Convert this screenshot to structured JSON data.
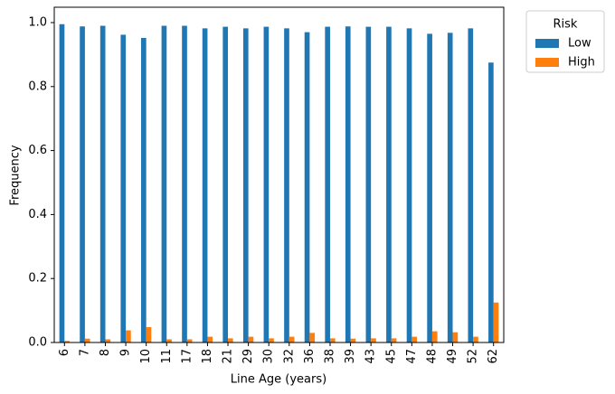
{
  "chart_data": {
    "type": "bar",
    "x_label": "Line Age (years)",
    "y_label": "Frequency",
    "categories": [
      "6",
      "7",
      "8",
      "9",
      "10",
      "11",
      "17",
      "18",
      "21",
      "29",
      "30",
      "32",
      "36",
      "38",
      "39",
      "43",
      "45",
      "47",
      "48",
      "49",
      "52",
      "62"
    ],
    "series": [
      {
        "name": "Low",
        "color": "#1f77b4",
        "values": [
          0.995,
          0.988,
          0.99,
          0.962,
          0.952,
          0.99,
          0.99,
          0.982,
          0.987,
          0.982,
          0.987,
          0.982,
          0.97,
          0.987,
          0.988,
          0.987,
          0.987,
          0.982,
          0.965,
          0.968,
          0.982,
          0.875
        ]
      },
      {
        "name": "High",
        "color": "#ff7f0e",
        "values": [
          0.005,
          0.012,
          0.01,
          0.038,
          0.048,
          0.01,
          0.01,
          0.018,
          0.013,
          0.018,
          0.013,
          0.018,
          0.03,
          0.013,
          0.012,
          0.013,
          0.013,
          0.018,
          0.035,
          0.032,
          0.018,
          0.125
        ]
      }
    ],
    "legend_title": "Risk",
    "legend": "outside-upper-right",
    "grid": false,
    "ylim": [
      0,
      1.048
    ],
    "yticks": [
      {
        "value": 0,
        "label": "0.0"
      },
      0.2,
      0.4,
      0.6,
      0.8,
      {
        "value": 1,
        "label": "1.0"
      }
    ]
  }
}
